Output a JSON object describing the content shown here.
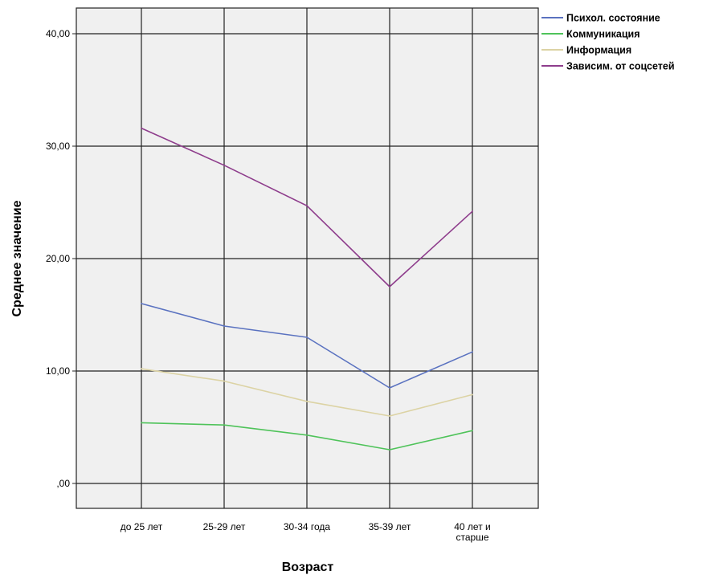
{
  "chart_data": {
    "type": "line",
    "xlabel": "Возраст",
    "ylabel": "Среднее значение",
    "ylim": [
      0,
      44
    ],
    "y_ticks": [
      0,
      10,
      20,
      30,
      40
    ],
    "y_tick_labels": [
      ",00",
      "10,00",
      "20,00",
      "30,00",
      "40,00"
    ],
    "categories": [
      "до 25 лет",
      "25-29 лет",
      "30-34 года",
      "35-39 лет",
      "40 лет и старше"
    ],
    "category_label_lines": [
      [
        "до 25 лет"
      ],
      [
        "25-29 лет"
      ],
      [
        "30-34 года"
      ],
      [
        "35-39 лет"
      ],
      [
        "40 лет и",
        "старше"
      ]
    ],
    "grid": true,
    "legend_position": "right",
    "series": [
      {
        "name": "Психол. состояние",
        "color": "#5a72c0",
        "values": [
          16.0,
          14.0,
          13.0,
          8.5,
          11.7
        ]
      },
      {
        "name": "Коммуникация",
        "color": "#4fc35a",
        "values": [
          5.4,
          5.2,
          4.3,
          3.0,
          4.7
        ]
      },
      {
        "name": "Информация",
        "color": "#dcd3a4",
        "values": [
          10.2,
          9.1,
          7.3,
          6.0,
          7.9
        ]
      },
      {
        "name": "Зависим. от соцсетей",
        "color": "#8e3d8c",
        "values": [
          31.6,
          28.3,
          24.7,
          17.5,
          24.2
        ]
      }
    ]
  }
}
